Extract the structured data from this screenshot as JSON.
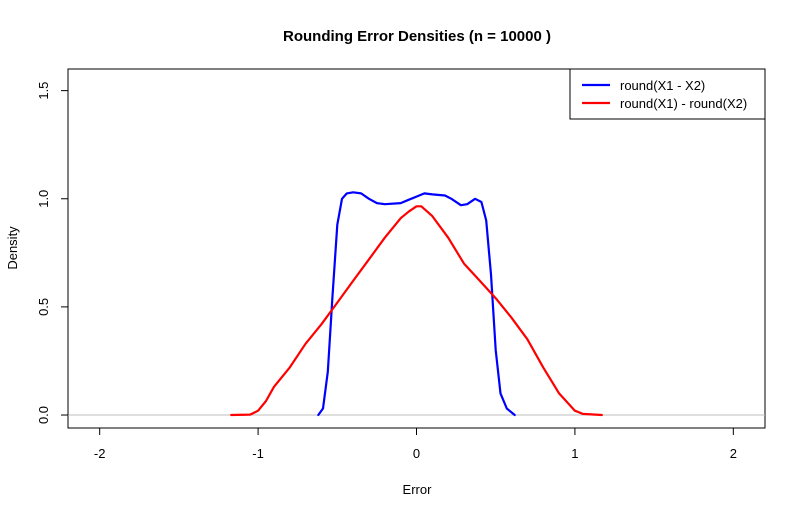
{
  "chart_data": {
    "type": "line",
    "title": "Rounding Error Densities (n = 10000 )",
    "xlabel": "Error",
    "ylabel": "Density",
    "xlim": [
      -2.2,
      2.2
    ],
    "ylim": [
      -0.06,
      1.6
    ],
    "x_ticks": [
      -2,
      -1,
      0,
      1,
      2
    ],
    "x_tick_labels": [
      "-2",
      "-1",
      "0",
      "1",
      "2"
    ],
    "y_ticks": [
      0.0,
      0.5,
      1.0,
      1.5
    ],
    "y_tick_labels": [
      "0.0",
      "0.5",
      "1.0",
      "1.5"
    ],
    "grid": false,
    "baseline": {
      "y": 0,
      "color": "#bebebe"
    },
    "legend_position": "top-right",
    "series": [
      {
        "name": "round(X1 - X2)",
        "color": "#0000ff",
        "points": [
          [
            -0.62,
            0.0
          ],
          [
            -0.59,
            0.03
          ],
          [
            -0.56,
            0.2
          ],
          [
            -0.53,
            0.55
          ],
          [
            -0.5,
            0.88
          ],
          [
            -0.47,
            1.0
          ],
          [
            -0.44,
            1.025
          ],
          [
            -0.4,
            1.03
          ],
          [
            -0.35,
            1.025
          ],
          [
            -0.3,
            1.0
          ],
          [
            -0.25,
            0.98
          ],
          [
            -0.2,
            0.975
          ],
          [
            -0.1,
            0.98
          ],
          [
            -0.05,
            0.995
          ],
          [
            0.0,
            1.01
          ],
          [
            0.05,
            1.025
          ],
          [
            0.1,
            1.02
          ],
          [
            0.18,
            1.015
          ],
          [
            0.22,
            1.0
          ],
          [
            0.28,
            0.97
          ],
          [
            0.32,
            0.975
          ],
          [
            0.37,
            1.0
          ],
          [
            0.41,
            0.985
          ],
          [
            0.44,
            0.9
          ],
          [
            0.47,
            0.65
          ],
          [
            0.5,
            0.3
          ],
          [
            0.53,
            0.1
          ],
          [
            0.57,
            0.03
          ],
          [
            0.62,
            0.0
          ]
        ]
      },
      {
        "name": "round(X1) - round(X2)",
        "color": "#ff0000",
        "points": [
          [
            -1.17,
            0.0
          ],
          [
            -1.05,
            0.002
          ],
          [
            -1.0,
            0.02
          ],
          [
            -0.95,
            0.065
          ],
          [
            -0.9,
            0.13
          ],
          [
            -0.8,
            0.22
          ],
          [
            -0.7,
            0.33
          ],
          [
            -0.6,
            0.42
          ],
          [
            -0.5,
            0.52
          ],
          [
            -0.4,
            0.62
          ],
          [
            -0.3,
            0.72
          ],
          [
            -0.2,
            0.82
          ],
          [
            -0.1,
            0.91
          ],
          [
            -0.05,
            0.94
          ],
          [
            0.0,
            0.965
          ],
          [
            0.03,
            0.965
          ],
          [
            0.1,
            0.92
          ],
          [
            0.2,
            0.82
          ],
          [
            0.3,
            0.7
          ],
          [
            0.4,
            0.62
          ],
          [
            0.5,
            0.54
          ],
          [
            0.6,
            0.45
          ],
          [
            0.7,
            0.35
          ],
          [
            0.8,
            0.22
          ],
          [
            0.9,
            0.1
          ],
          [
            1.0,
            0.02
          ],
          [
            1.05,
            0.005
          ],
          [
            1.17,
            0.0
          ]
        ]
      }
    ]
  }
}
